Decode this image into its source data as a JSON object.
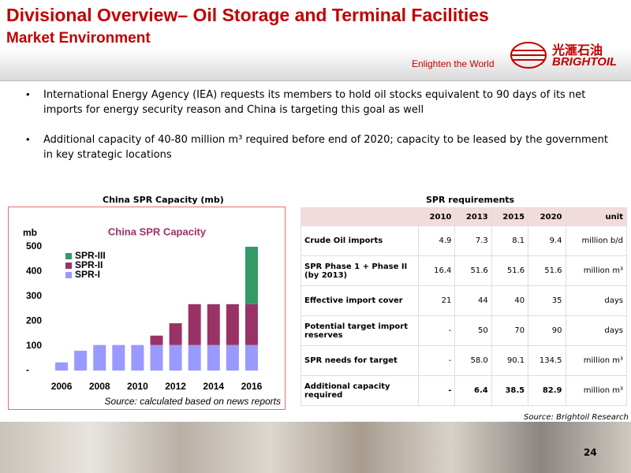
{
  "header": {
    "title": "Divisional Overview– Oil Storage and Terminal Facilities",
    "subtitle": "Market Environment",
    "tagline": "Enlighten the World",
    "logo_cn": "光滙石油",
    "logo_en": "BRIGHTOIL"
  },
  "bullets": [
    "International Energy Agency (IEA) requests its members to  hold oil stocks equivalent to 90 days of its net imports for energy security reason and China is targeting this goal as well",
    "Additional capacity of 40-80 million m³ required before end of 2020; capacity to be leased by the government in key strategic locations"
  ],
  "chart_caption": "China SPR Capacity (mb)",
  "chart_data": {
    "type": "stacked_bar",
    "title": "China SPR Capacity",
    "y_label": "mb",
    "source": "Source: calculated based on news reports",
    "categories": [
      "2006",
      null,
      "2008",
      null,
      "2010",
      null,
      "2012",
      null,
      "2014",
      null,
      "2016"
    ],
    "series": [
      {
        "name": "SPR-I",
        "color": "#9999ff",
        "values": [
          33,
          80,
          103,
          103,
          103,
          103,
          103,
          103,
          103,
          103,
          103
        ]
      },
      {
        "name": "SPR-II",
        "color": "#993366",
        "values": [
          0,
          0,
          0,
          0,
          0,
          38,
          88,
          165,
          165,
          165,
          165
        ]
      },
      {
        "name": "SPR-III",
        "color": "#339966",
        "values": [
          0,
          0,
          0,
          0,
          0,
          0,
          0,
          0,
          0,
          0,
          232
        ]
      }
    ],
    "ylim": [
      0,
      500
    ],
    "yticks": [
      {
        "value": 0,
        "label": "-"
      },
      100,
      200,
      300,
      400,
      500
    ],
    "grid": false
  },
  "table": {
    "caption": "SPR requirements",
    "header": [
      "",
      "2010",
      "2013",
      "2015",
      "2020",
      "unit"
    ],
    "rows": [
      [
        "Crude Oil imports",
        "4.9",
        "7.3",
        "8.1",
        "9.4",
        "million b/d"
      ],
      [
        "SPR Phase 1 + Phase II (by 2013)",
        "16.4",
        "51.6",
        "51.6",
        "51.6",
        "million m³"
      ],
      [
        "Effective import cover",
        "21",
        "44",
        "40",
        "35",
        "days"
      ],
      [
        "Potential target import reserves",
        "-",
        "50",
        "70",
        "90",
        "days"
      ],
      [
        "SPR needs for target",
        "-",
        "58.0",
        "90.1",
        "134.5",
        "million m³"
      ],
      [
        "Additional capacity required",
        "-",
        "6.4",
        "38.5",
        "82.9",
        "million m³"
      ]
    ],
    "source": "Source: Brightoil Research"
  },
  "page_number": "24"
}
